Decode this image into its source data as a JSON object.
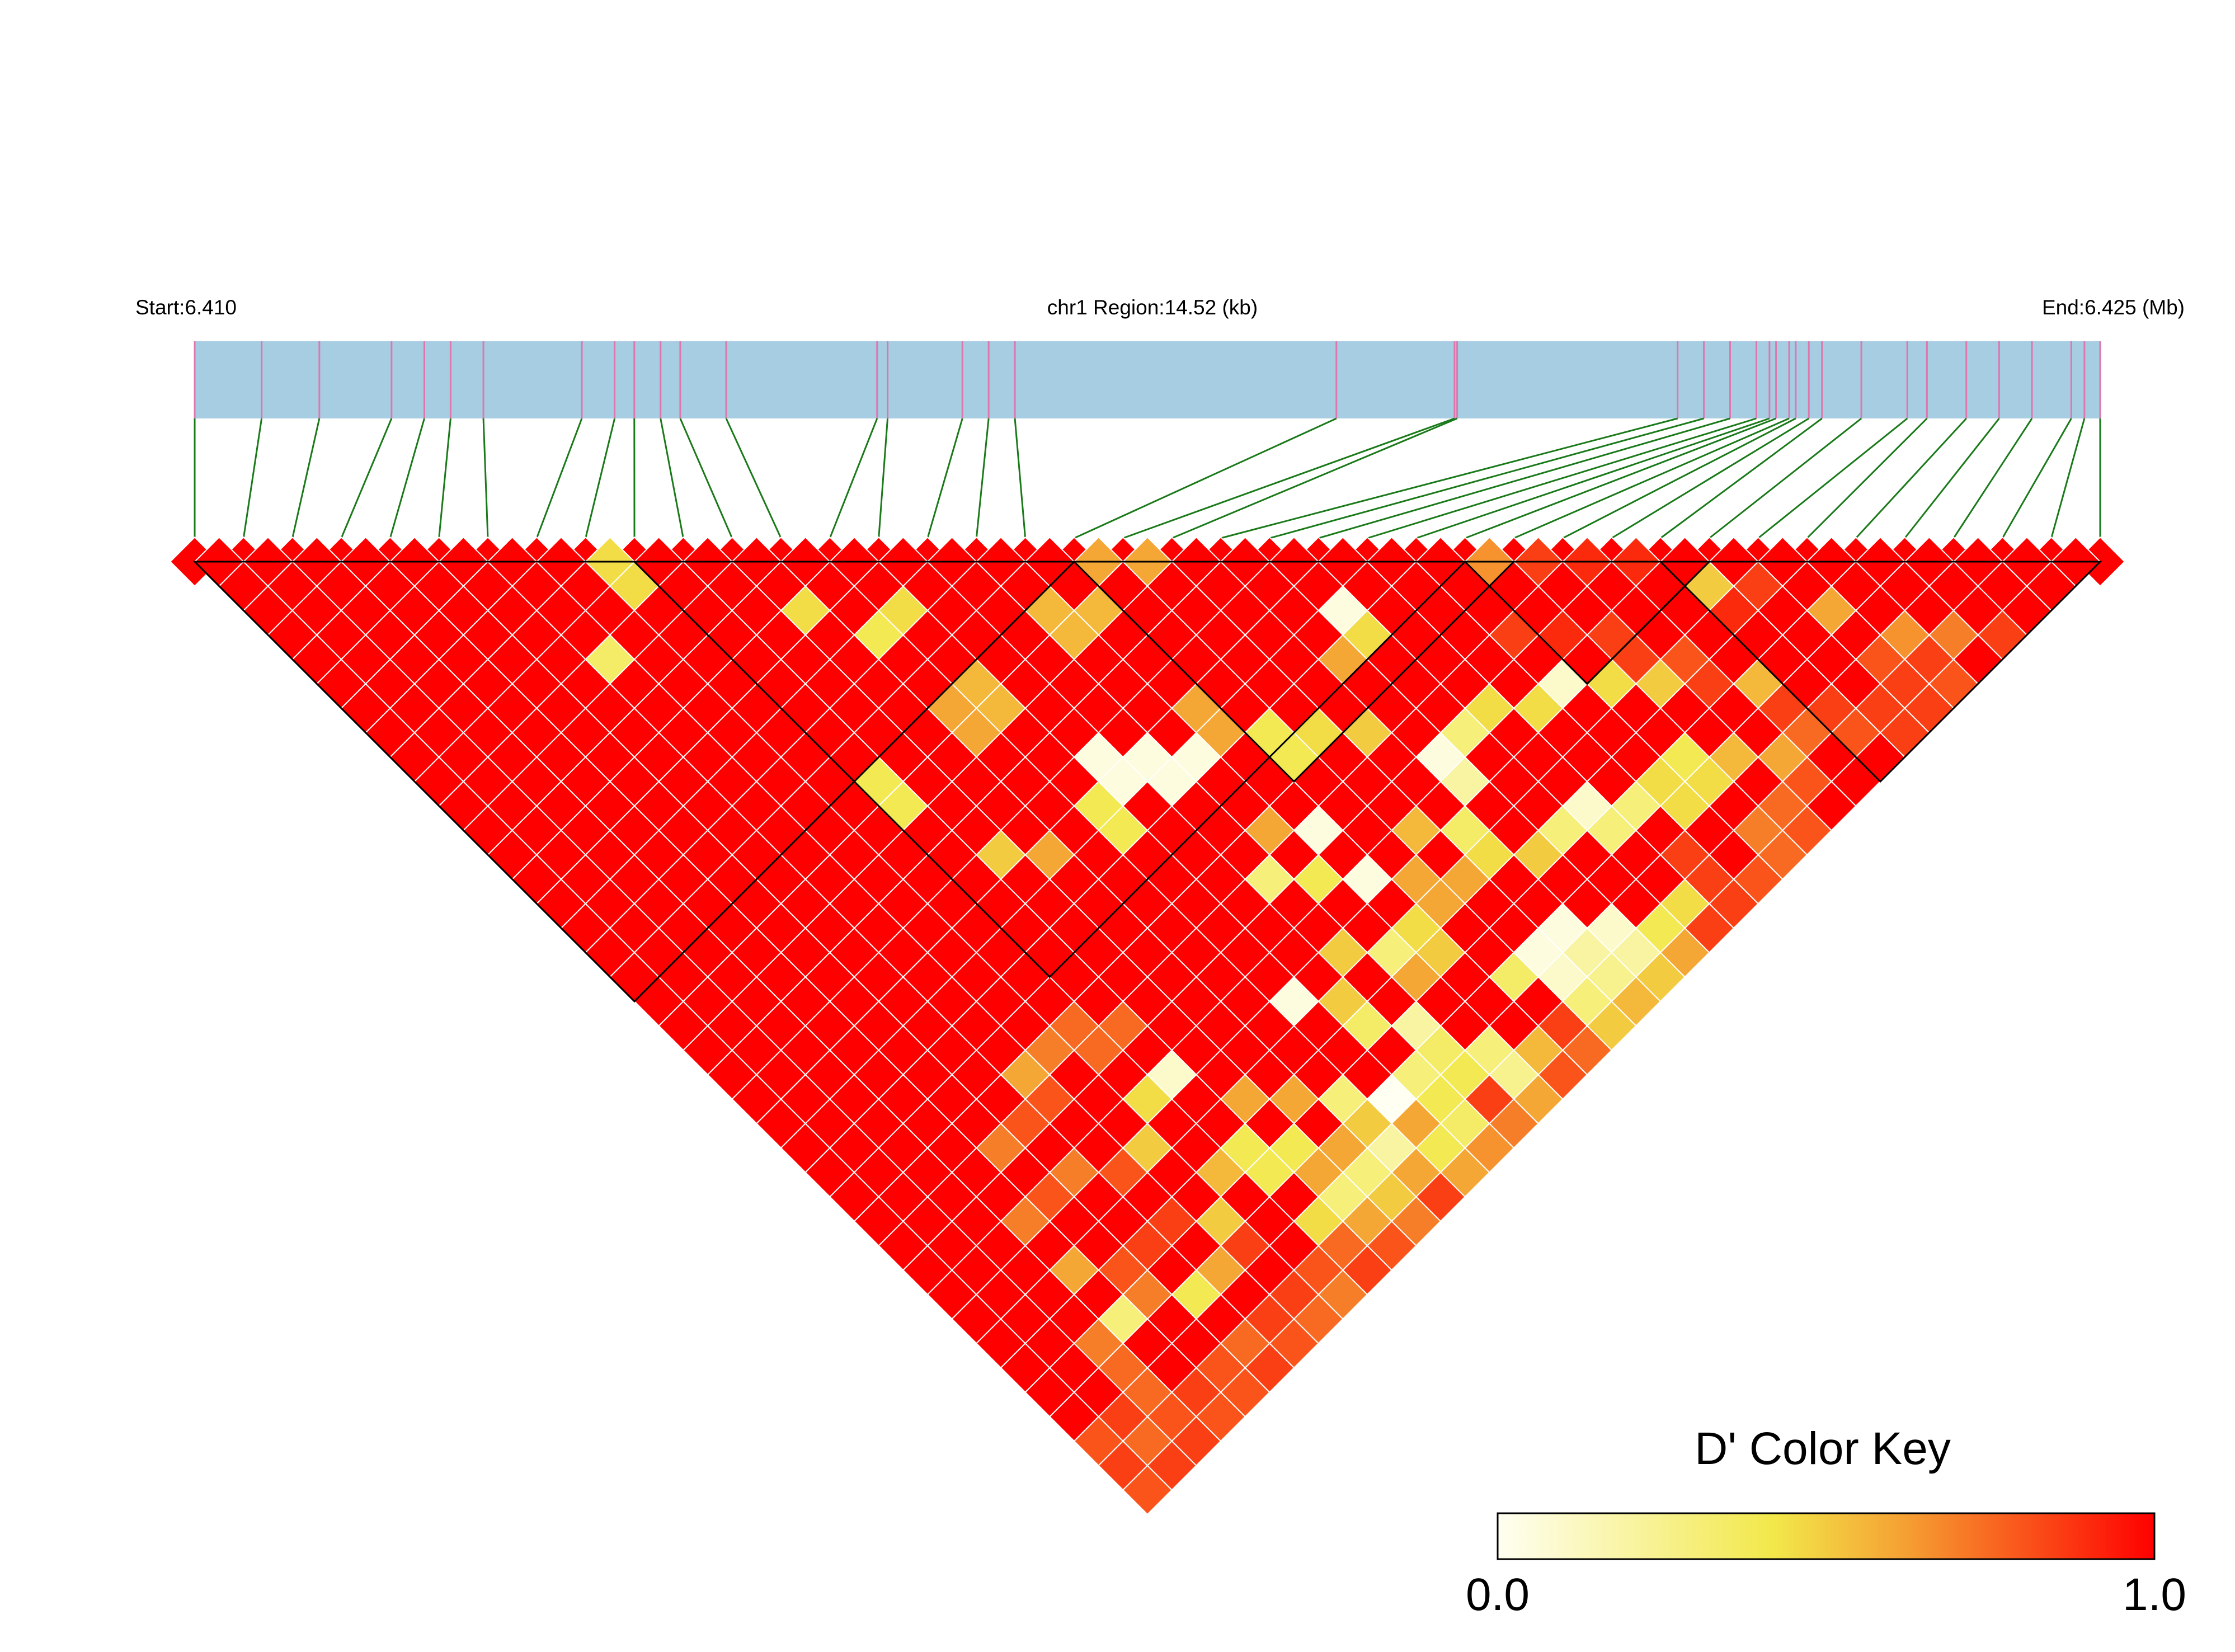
{
  "chart_data": {
    "type": "heatmap",
    "chromosome": "chr1",
    "header": {
      "start_label": "Start:6.410",
      "region_label": "chr1 Region:14.52 (kb)",
      "end_label": "End:6.425 (Mb)"
    },
    "region": {
      "start_mb": 6.41,
      "end_mb": 6.425,
      "length_kb": 14.52
    },
    "snp_count": 40,
    "snp_positions_kb": [
      0.0,
      0.51,
      0.95,
      1.5,
      1.75,
      1.95,
      2.2,
      2.95,
      3.2,
      3.35,
      3.55,
      3.7,
      4.05,
      5.2,
      5.28,
      5.85,
      6.05,
      6.25,
      8.7,
      9.6,
      9.62,
      11.3,
      11.5,
      11.7,
      11.9,
      12.0,
      12.05,
      12.15,
      12.2,
      12.3,
      12.4,
      12.7,
      13.05,
      13.2,
      13.5,
      13.75,
      14.0,
      14.3,
      14.4,
      14.52
    ],
    "blocks": [
      {
        "start": 0,
        "end": 18
      },
      {
        "start": 9,
        "end": 26
      },
      {
        "start": 18,
        "end": 27
      },
      {
        "start": 26,
        "end": 31
      },
      {
        "start": 30,
        "end": 39
      }
    ],
    "color_key": {
      "title": "D' Color Key",
      "min_label": "0.0",
      "max_label": "1.0",
      "min": 0.0,
      "max": 1.0,
      "stops": [
        "#fffff2",
        "#f2e84a",
        "#f5a033",
        "#ff0000"
      ]
    },
    "colors": {
      "track_fill": "#a6cde2",
      "snp_tick": "#de77ae",
      "connector": "#1a7a1a",
      "block_outline": "#000000",
      "cell_stroke": "#ffffff"
    },
    "dprime_default": 1.0,
    "dprime_overrides": [
      [
        8,
        9,
        0.45
      ],
      [
        8,
        10,
        0.45
      ],
      [
        11,
        14,
        0.45
      ],
      [
        6,
        11,
        0.35
      ],
      [
        12,
        16,
        0.4
      ],
      [
        13,
        16,
        0.45
      ],
      [
        18,
        19,
        0.6
      ],
      [
        19,
        20,
        0.6
      ],
      [
        16,
        19,
        0.55
      ],
      [
        16,
        20,
        0.55
      ],
      [
        17,
        20,
        0.55
      ],
      [
        13,
        19,
        0.55
      ],
      [
        13,
        20,
        0.55
      ],
      [
        12,
        19,
        0.6
      ],
      [
        12,
        20,
        0.6
      ],
      [
        9,
        19,
        0.4
      ],
      [
        9,
        20,
        0.4
      ],
      [
        22,
        25,
        0.05
      ],
      [
        22,
        26,
        0.45
      ],
      [
        21,
        26,
        0.6
      ],
      [
        24,
        31,
        0.45
      ],
      [
        25,
        31,
        0.1
      ],
      [
        26,
        27,
        0.65
      ],
      [
        27,
        28,
        0.85
      ],
      [
        28,
        29,
        0.9
      ],
      [
        29,
        30,
        0.9
      ],
      [
        30,
        32,
        0.5
      ],
      [
        32,
        35,
        0.6
      ],
      [
        33,
        37,
        0.65
      ],
      [
        34,
        38,
        0.7
      ],
      [
        35,
        39,
        0.85
      ],
      [
        30,
        33,
        0.9
      ],
      [
        31,
        33,
        0.85
      ],
      [
        26,
        32,
        0.45
      ],
      [
        27,
        33,
        0.5
      ],
      [
        28,
        34,
        0.85
      ],
      [
        25,
        35,
        0.45
      ],
      [
        25,
        36,
        0.45
      ],
      [
        26,
        36,
        0.45
      ],
      [
        24,
        37,
        0.85
      ],
      [
        24,
        38,
        0.85
      ],
      [
        14,
        23,
        0.05
      ],
      [
        14,
        24,
        0.05
      ],
      [
        15,
        24,
        0.05
      ],
      [
        15,
        25,
        0.05
      ],
      [
        16,
        25,
        0.05
      ],
      [
        13,
        24,
        0.4
      ],
      [
        13,
        25,
        0.4
      ],
      [
        17,
        24,
        0.6
      ],
      [
        17,
        25,
        0.6
      ],
      [
        18,
        26,
        0.4
      ],
      [
        18,
        27,
        0.4
      ],
      [
        19,
        27,
        0.45
      ],
      [
        20,
        28,
        0.5
      ],
      [
        21,
        30,
        0.05
      ],
      [
        21,
        31,
        0.2
      ],
      [
        22,
        30,
        0.3
      ],
      [
        23,
        30,
        0.45
      ],
      [
        22,
        34,
        0.3
      ],
      [
        23,
        34,
        0.1
      ],
      [
        23,
        35,
        0.3
      ],
      [
        24,
        35,
        0.3
      ],
      [
        20,
        32,
        0.35
      ],
      [
        20,
        33,
        0.45
      ],
      [
        21,
        34,
        0.5
      ],
      [
        19,
        31,
        0.55
      ],
      [
        18,
        32,
        0.6
      ],
      [
        19,
        33,
        0.6
      ],
      [
        20,
        36,
        0.05
      ],
      [
        21,
        37,
        0.1
      ],
      [
        20,
        37,
        0.2
      ],
      [
        19,
        36,
        0.05
      ],
      [
        18,
        36,
        0.35
      ],
      [
        19,
        37,
        0.1
      ],
      [
        18,
        33,
        0.6
      ],
      [
        17,
        33,
        0.45
      ],
      [
        17,
        34,
        0.5
      ],
      [
        16,
        33,
        0.3
      ],
      [
        16,
        34,
        0.6
      ],
      [
        15,
        35,
        0.2
      ],
      [
        15,
        36,
        0.35
      ],
      [
        14,
        36,
        0.3
      ],
      [
        14,
        37,
        0.4
      ],
      [
        15,
        37,
        0.4
      ],
      [
        16,
        37,
        0.3
      ],
      [
        13,
        36,
        0.0
      ],
      [
        13,
        37,
        0.6
      ],
      [
        12,
        37,
        0.2
      ],
      [
        11,
        37,
        0.3
      ],
      [
        10,
        36,
        0.6
      ],
      [
        11,
        36,
        0.6
      ],
      [
        12,
        35,
        0.3
      ],
      [
        12,
        36,
        0.5
      ],
      [
        14,
        34,
        0.35
      ],
      [
        14,
        33,
        0.5
      ],
      [
        13,
        32,
        0.05
      ],
      [
        15,
        32,
        0.5
      ],
      [
        17,
        29,
        0.05
      ],
      [
        16,
        30,
        0.4
      ],
      [
        17,
        31,
        0.05
      ],
      [
        15,
        29,
        0.3
      ],
      [
        16,
        28,
        0.6
      ],
      [
        10,
        23,
        0.5
      ],
      [
        11,
        24,
        0.6
      ],
      [
        8,
        28,
        0.75
      ],
      [
        8,
        29,
        0.75
      ],
      [
        9,
        29,
        0.75
      ],
      [
        6,
        28,
        0.6
      ],
      [
        7,
        28,
        0.7
      ],
      [
        5,
        29,
        0.8
      ],
      [
        6,
        29,
        0.8
      ],
      [
        4,
        29,
        0.7
      ],
      [
        3,
        31,
        0.7
      ],
      [
        4,
        31,
        0.8
      ],
      [
        5,
        31,
        0.7
      ],
      [
        6,
        32,
        0.8
      ],
      [
        7,
        32,
        0.5
      ],
      [
        3,
        33,
        0.6
      ],
      [
        4,
        34,
        0.8
      ],
      [
        4,
        35,
        0.7
      ],
      [
        3,
        35,
        0.3
      ],
      [
        2,
        35,
        0.7
      ],
      [
        2,
        36,
        0.75
      ],
      [
        2,
        37,
        0.75
      ],
      [
        1,
        37,
        0.85
      ],
      [
        0,
        38,
        0.85
      ],
      [
        1,
        38,
        0.75
      ],
      [
        0,
        39,
        0.8
      ],
      [
        0,
        37,
        0.8
      ],
      [
        5,
        36,
        0.4
      ],
      [
        6,
        36,
        0.6
      ],
      [
        7,
        35,
        0.5
      ],
      [
        7,
        36,
        0.85
      ],
      [
        8,
        34,
        0.55
      ],
      [
        9,
        34,
        0.4
      ],
      [
        9,
        35,
        0.4
      ],
      [
        10,
        35,
        0.4
      ],
      [
        10,
        37,
        0.3
      ],
      [
        9,
        37,
        0.45
      ],
      [
        6,
        34,
        0.85
      ],
      [
        5,
        34,
        0.85
      ],
      [
        11,
        34,
        0.6
      ],
      [
        10,
        33,
        0.6
      ],
      [
        8,
        31,
        0.45
      ],
      [
        9,
        31,
        0.1
      ],
      [
        27,
        32,
        0.85
      ],
      [
        28,
        33,
        0.8
      ],
      [
        27,
        31,
        0.85
      ],
      [
        26,
        30,
        0.9
      ],
      [
        25,
        29,
        0.85
      ],
      [
        29,
        36,
        0.85
      ],
      [
        30,
        37,
        0.85
      ],
      [
        31,
        38,
        0.85
      ],
      [
        26,
        35,
        0.4
      ],
      [
        27,
        36,
        0.55
      ],
      [
        28,
        37,
        0.6
      ],
      [
        29,
        35,
        0.55
      ],
      [
        29,
        37,
        0.75
      ],
      [
        30,
        38,
        0.8
      ],
      [
        31,
        39,
        0.85
      ],
      [
        32,
        39,
        0.85
      ],
      [
        33,
        39,
        0.8
      ],
      [
        32,
        37,
        0.8
      ],
      [
        32,
        38,
        0.85
      ],
      [
        33,
        38,
        0.85
      ],
      [
        28,
        38,
        0.8
      ],
      [
        27,
        38,
        0.75
      ],
      [
        27,
        39,
        0.8
      ],
      [
        26,
        38,
        0.7
      ],
      [
        26,
        39,
        0.75
      ],
      [
        25,
        39,
        0.8
      ],
      [
        24,
        39,
        0.85
      ],
      [
        23,
        39,
        0.85
      ],
      [
        22,
        38,
        0.4
      ],
      [
        22,
        39,
        0.6
      ],
      [
        23,
        38,
        0.45
      ],
      [
        21,
        38,
        0.2
      ],
      [
        21,
        39,
        0.5
      ],
      [
        20,
        39,
        0.55
      ],
      [
        20,
        38,
        0.25
      ],
      [
        19,
        38,
        0.3
      ],
      [
        19,
        39,
        0.5
      ],
      [
        18,
        38,
        0.85
      ],
      [
        18,
        39,
        0.75
      ],
      [
        17,
        38,
        0.55
      ],
      [
        17,
        39,
        0.8
      ],
      [
        16,
        39,
        0.6
      ],
      [
        16,
        38,
        0.25
      ],
      [
        15,
        38,
        0.85
      ],
      [
        15,
        39,
        0.7
      ],
      [
        14,
        39,
        0.65
      ],
      [
        14,
        38,
        0.35
      ],
      [
        13,
        38,
        0.4
      ],
      [
        13,
        39,
        0.6
      ],
      [
        12,
        38,
        0.6
      ],
      [
        12,
        39,
        0.85
      ],
      [
        11,
        39,
        0.7
      ],
      [
        11,
        38,
        0.5
      ],
      [
        10,
        38,
        0.6
      ],
      [
        10,
        39,
        0.8
      ],
      [
        9,
        38,
        0.75
      ],
      [
        9,
        39,
        0.85
      ],
      [
        8,
        39,
        0.7
      ],
      [
        8,
        38,
        0.8
      ],
      [
        7,
        38,
        0.85
      ],
      [
        7,
        39,
        0.75
      ],
      [
        6,
        39,
        0.8
      ],
      [
        5,
        39,
        0.85
      ],
      [
        4,
        39,
        0.8
      ],
      [
        6,
        38,
        0.85
      ],
      [
        5,
        38,
        0.75
      ],
      [
        4,
        38,
        0.8
      ],
      [
        3,
        38,
        0.85
      ],
      [
        3,
        39,
        0.8
      ],
      [
        2,
        39,
        0.85
      ],
      [
        2,
        38,
        0.8
      ],
      [
        1,
        39,
        0.85
      ]
    ]
  }
}
